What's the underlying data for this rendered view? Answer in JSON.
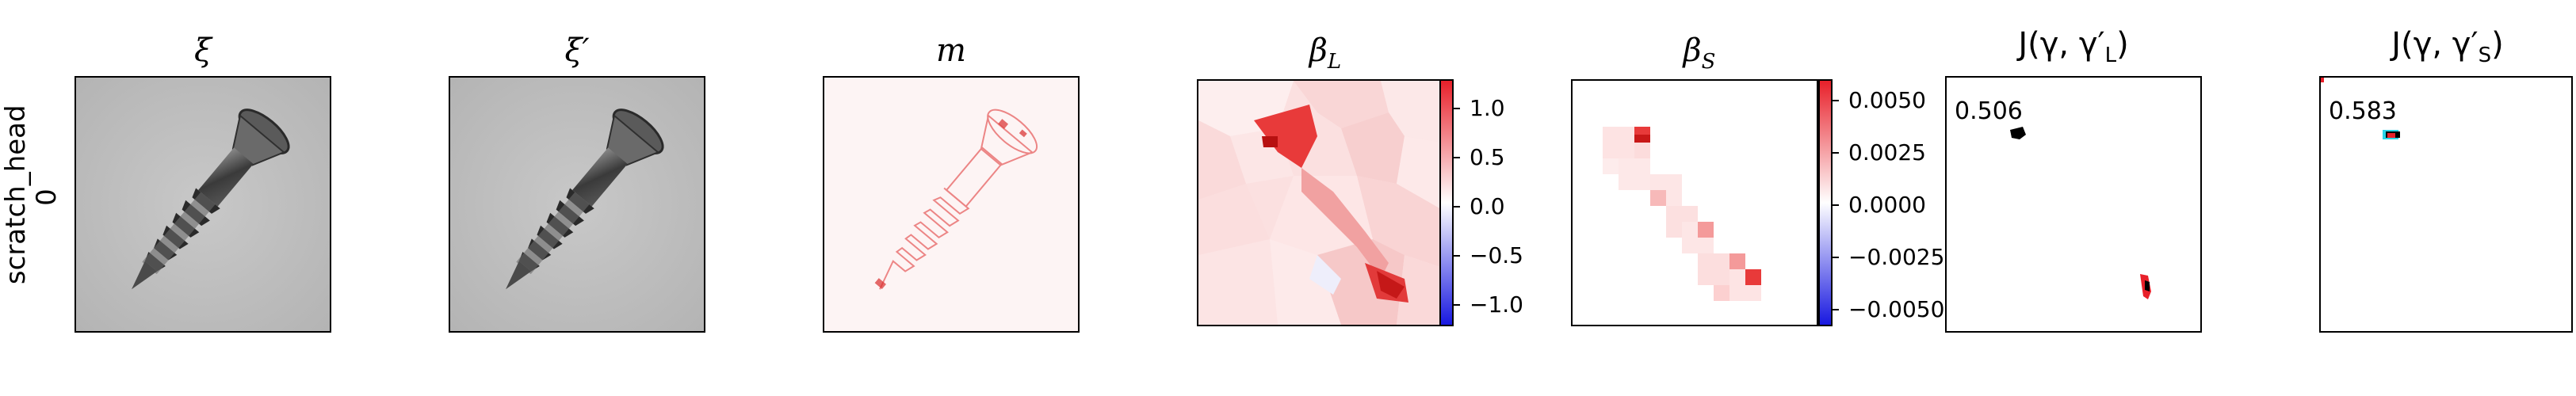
{
  "row_label": {
    "line1": "scratch_head",
    "line2": "0"
  },
  "panels": {
    "xi": {
      "title": "ξ"
    },
    "xi_prime": {
      "title": "ξ′"
    },
    "m": {
      "title": "m"
    },
    "beta_L": {
      "title": "β",
      "subscript": "L",
      "colorbar": {
        "ticks": [
          "1.0",
          "0.5",
          "0.0",
          "−0.5",
          "−1.0"
        ],
        "colormap": "bwr"
      }
    },
    "beta_S": {
      "title": "β",
      "subscript": "S",
      "colorbar": {
        "ticks": [
          "0.0050",
          "0.0025",
          "0.0000",
          "−0.0025",
          "−0.0050"
        ],
        "colormap": "bwr"
      }
    },
    "J_L": {
      "title": "J(γ, γ′",
      "subscript": "L",
      "title_end": ")",
      "score": "0.506"
    },
    "J_S": {
      "title": "J(γ, γ′",
      "subscript": "S",
      "title_end": ")",
      "score": "0.583"
    }
  },
  "colors": {
    "red": "#e8202a",
    "blue": "#1818e0",
    "mask_black": "#000000",
    "mask_cyan": "#2ad4e8"
  }
}
